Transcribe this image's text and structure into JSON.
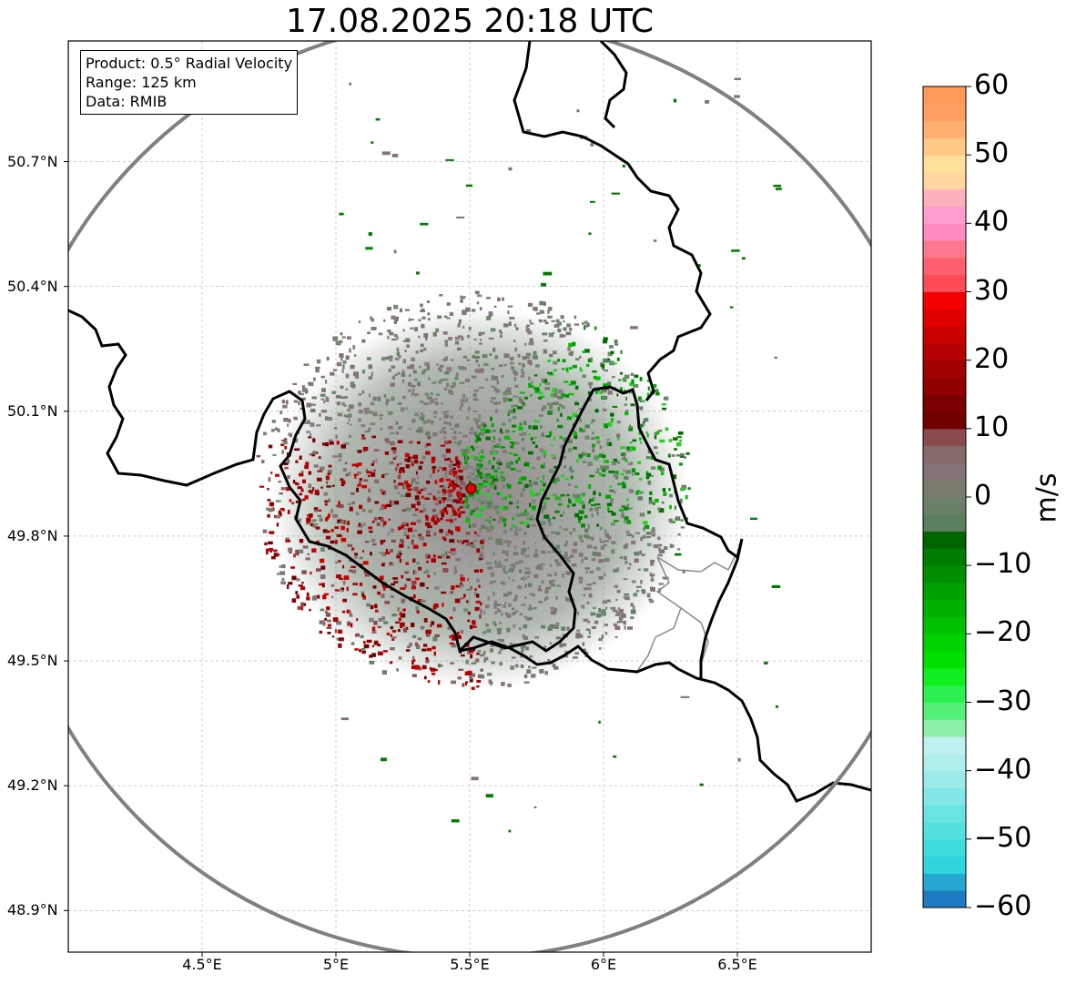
{
  "title": "17.08.2025 20:18 UTC",
  "info": {
    "product": "Product: 0.5° Radial Velocity",
    "range": "Range: 125 km",
    "source": "Data: RMIB"
  },
  "map": {
    "lon_range": [
      4.0,
      7.0
    ],
    "lat_range": [
      48.8,
      50.99
    ],
    "radar_site": {
      "lon": 5.505,
      "lat": 49.914,
      "name": "radar-site"
    },
    "range_ring_km": 125,
    "lat_ticks": [
      {
        "value": 50.7,
        "label": "50.7°N"
      },
      {
        "value": 50.4,
        "label": "50.4°N"
      },
      {
        "value": 50.1,
        "label": "50.1°N"
      },
      {
        "value": 49.8,
        "label": "49.8°N"
      },
      {
        "value": 49.5,
        "label": "49.5°N"
      },
      {
        "value": 49.2,
        "label": "49.2°N"
      },
      {
        "value": 48.9,
        "label": "48.9°N"
      }
    ],
    "lon_ticks": [
      {
        "value": 4.5,
        "label": "4.5°E"
      },
      {
        "value": 5.0,
        "label": "5°E"
      },
      {
        "value": 5.5,
        "label": "5.5°E"
      },
      {
        "value": 6.0,
        "label": "6°E"
      },
      {
        "value": 6.5,
        "label": "6.5°E"
      }
    ]
  },
  "colorbar": {
    "label": "m/s",
    "min": -60,
    "max": 60,
    "ticks": [
      {
        "value": 60,
        "label": "60"
      },
      {
        "value": 50,
        "label": "50"
      },
      {
        "value": 40,
        "label": "40"
      },
      {
        "value": 30,
        "label": "30"
      },
      {
        "value": 20,
        "label": "20"
      },
      {
        "value": 10,
        "label": "10"
      },
      {
        "value": 0,
        "label": "0"
      },
      {
        "value": -10,
        "label": "−10"
      },
      {
        "value": -20,
        "label": "−20"
      },
      {
        "value": -30,
        "label": "−30"
      },
      {
        "value": -40,
        "label": "−40"
      },
      {
        "value": -50,
        "label": "−50"
      },
      {
        "value": -60,
        "label": "−60"
      }
    ],
    "colors": [
      "#1f7bc1",
      "#26a6d1",
      "#2ed6dc",
      "#3fdcdc",
      "#55e0e0",
      "#6be3e3",
      "#84e7e7",
      "#9cebeb",
      "#b0eeee",
      "#c0f1f1",
      "#8cf0a8",
      "#55f07a",
      "#2cf050",
      "#10ee20",
      "#00e000",
      "#00d000",
      "#00c000",
      "#00b000",
      "#00a000",
      "#008e00",
      "#007c00",
      "#006400",
      "#5a8060",
      "#6a7f68",
      "#7b7a6e",
      "#857276",
      "#876a6c",
      "#8a4b4e",
      "#700000",
      "#7c0000",
      "#900000",
      "#a00000",
      "#b40000",
      "#c80000",
      "#e00000",
      "#f40000",
      "#ff4a58",
      "#ff6070",
      "#ff7890",
      "#ff8cbe",
      "#ff9ccf",
      "#ffb0bc",
      "#ffd5a0",
      "#ffe09a",
      "#ffc884",
      "#ffb070",
      "#ffa060",
      "#ff9858"
    ]
  }
}
